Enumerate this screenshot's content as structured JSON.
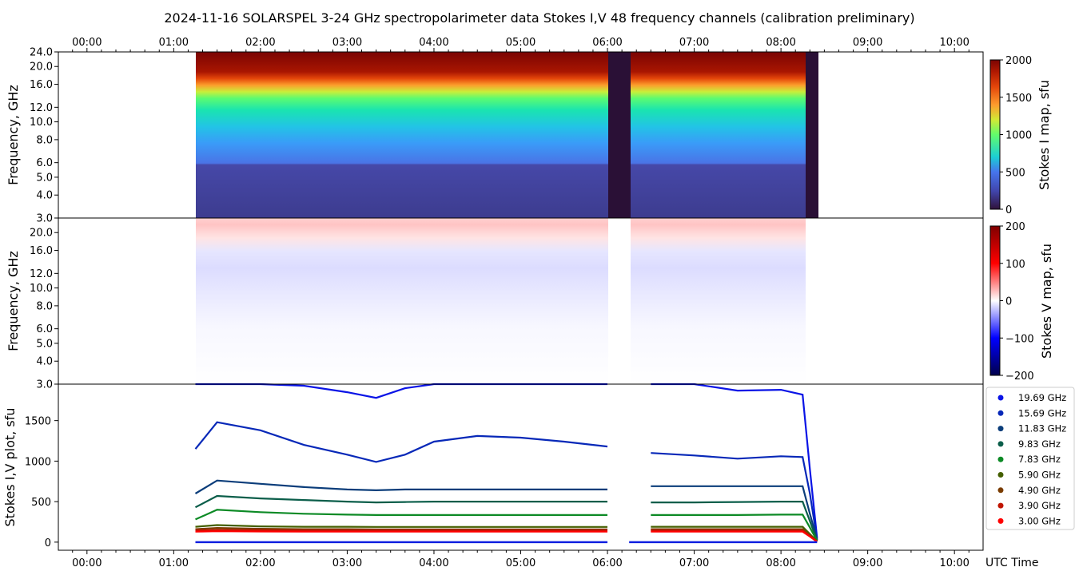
{
  "title": "2024-11-16  SOLARSPEL  3-24 GHz spectropolarimeter data   Stokes I,V   48 frequency channels   (calibration preliminary)",
  "time_axis": {
    "label": "UTC Time",
    "ticks": [
      "00:00",
      "01:00",
      "02:00",
      "03:00",
      "04:00",
      "05:00",
      "06:00",
      "07:00",
      "08:00",
      "09:00",
      "10:00"
    ],
    "range_hours": [
      -0.33,
      10.33
    ]
  },
  "colors": {
    "stokes_i_colormap": "turbo",
    "stokes_v_colormap": "seismic"
  },
  "chart_data": [
    {
      "type": "heatmap",
      "title": "",
      "xlabel": "",
      "ylabel": "Frequency, GHz",
      "y_scale": "log",
      "ylim": [
        3.0,
        24.0
      ],
      "y_ticks": [
        "3.0",
        "4.0",
        "5.0",
        "6.0",
        "8.0",
        "10.0",
        "12.0",
        "16.0",
        "20.0",
        "24.0"
      ],
      "colorbar_label": "Stokes I map, sfu",
      "colorbar_ticks": [
        "0",
        "500",
        "1000",
        "1500",
        "2000"
      ],
      "clim": [
        0,
        2000
      ],
      "data_start": "01:15",
      "gap": [
        "06:00",
        "06:15"
      ],
      "data_end": "08:25"
    },
    {
      "type": "heatmap",
      "title": "",
      "xlabel": "",
      "ylabel": "Frequency, GHz",
      "y_scale": "log",
      "ylim": [
        3.0,
        24.0
      ],
      "y_ticks": [
        "3.0",
        "4.0",
        "5.0",
        "6.0",
        "8.0",
        "10.0",
        "12.0",
        "16.0",
        "20.0"
      ],
      "colorbar_label": "Stokes V map, sfu",
      "colorbar_ticks": [
        "200",
        "100",
        "0",
        "−100",
        "−200"
      ],
      "clim": [
        -200,
        200
      ]
    },
    {
      "type": "line",
      "title": "",
      "xlabel": "UTC Time",
      "ylabel": "Stokes I,V plot, sfu",
      "ylim": [
        -100,
        1950
      ],
      "y_ticks": [
        "0",
        "500",
        "1000",
        "1500"
      ],
      "x": [
        "01:15",
        "01:30",
        "02:00",
        "02:30",
        "03:00",
        "03:20",
        "03:40",
        "04:00",
        "04:30",
        "05:00",
        "05:30",
        "06:00",
        "06:15",
        "06:30",
        "07:00",
        "07:30",
        "08:00",
        "08:15",
        "08:20",
        "08:25"
      ],
      "series": [
        {
          "name": "19.69 GHz",
          "color": "#0a14e6",
          "values": [
            2000,
            2000,
            2000,
            1930,
            1850,
            1780,
            1900,
            2000,
            2000,
            2000,
            2000,
            2000,
            null,
            2000,
            2000,
            1870,
            1880,
            1820,
            900,
            50
          ]
        },
        {
          "name": "15.69 GHz",
          "color": "#0728b8",
          "values": [
            1150,
            1480,
            1380,
            1200,
            1080,
            990,
            1080,
            1240,
            1310,
            1290,
            1240,
            1180,
            null,
            1100,
            1070,
            1030,
            1060,
            1050,
            600,
            30
          ]
        },
        {
          "name": "11.83 GHz",
          "color": "#0b3d7a",
          "values": [
            600,
            760,
            720,
            680,
            650,
            640,
            650,
            650,
            650,
            650,
            650,
            650,
            null,
            690,
            690,
            690,
            690,
            690,
            350,
            30
          ]
        },
        {
          "name": "9.83 GHz",
          "color": "#0b5e4a",
          "values": [
            430,
            570,
            540,
            520,
            500,
            490,
            495,
            500,
            500,
            500,
            500,
            500,
            null,
            490,
            490,
            495,
            500,
            500,
            260,
            20
          ]
        },
        {
          "name": "7.83 GHz",
          "color": "#0c8a25",
          "values": [
            280,
            400,
            370,
            350,
            340,
            335,
            335,
            335,
            335,
            335,
            335,
            335,
            null,
            335,
            335,
            335,
            340,
            340,
            180,
            15
          ]
        },
        {
          "name": "5.90 GHz",
          "color": "#445f00",
          "values": [
            190,
            210,
            195,
            190,
            190,
            188,
            188,
            188,
            188,
            188,
            188,
            188,
            null,
            190,
            190,
            190,
            190,
            190,
            100,
            10
          ]
        },
        {
          "name": "4.90 GHz",
          "color": "#7a3c00",
          "values": [
            160,
            175,
            165,
            160,
            160,
            158,
            158,
            158,
            158,
            158,
            158,
            158,
            null,
            160,
            160,
            160,
            160,
            160,
            85,
            8
          ]
        },
        {
          "name": "3.90 GHz",
          "color": "#c01400",
          "values": [
            145,
            150,
            148,
            145,
            145,
            145,
            145,
            145,
            145,
            145,
            145,
            145,
            null,
            145,
            145,
            145,
            145,
            145,
            75,
            6
          ]
        },
        {
          "name": "3.00 GHz",
          "color": "#ff0000",
          "values": [
            130,
            135,
            132,
            130,
            130,
            130,
            130,
            130,
            130,
            130,
            130,
            130,
            null,
            130,
            130,
            130,
            130,
            130,
            70,
            5
          ]
        }
      ]
    }
  ]
}
